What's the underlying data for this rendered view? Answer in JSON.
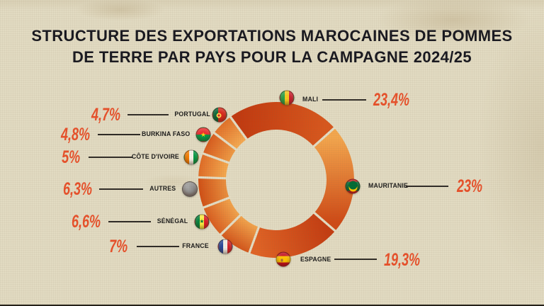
{
  "title": {
    "line1": "STRUCTURE DES EXPORTATIONS MAROCAINES DE POMMES",
    "line2": "DE TERRE PAR PAYS POUR LA CAMPAGNE 2024/25"
  },
  "chart_data": {
    "type": "pie",
    "variant": "donut",
    "title": "Structure des exportations marocaines de pommes de terre par pays pour la campagne 2024/25",
    "unit": "%",
    "start_angle_deg": -36,
    "clockwise": true,
    "categories": [
      "Mali",
      "Mauritanie",
      "Espagne",
      "France",
      "Sénégal",
      "Autres",
      "Côte d'Ivoire",
      "Burkina Faso",
      "Portugal"
    ],
    "values": [
      23.4,
      23,
      19.3,
      7,
      6.6,
      6.3,
      5,
      4.8,
      4.7
    ],
    "segments": [
      {
        "label": "MALI",
        "value": 23.4,
        "pct_label": "23,4%",
        "icon": "mali-flag-icon",
        "gradient": {
          "from": "#c23a10",
          "to": "#d8571d",
          "dir": "arc"
        }
      },
      {
        "label": "MAURITANIE",
        "value": 23,
        "pct_label": "23%",
        "icon": "mauritania-flag-icon",
        "gradient": {
          "from": "#f4a74e",
          "to": "#cf4a16",
          "dir": "arc"
        }
      },
      {
        "label": "ESPAGNE",
        "value": 19.3,
        "pct_label": "19,3%",
        "icon": "spain-flag-icon",
        "gradient": {
          "from": "#c43d12",
          "to": "#e06325",
          "dir": "arc"
        }
      },
      {
        "label": "FRANCE",
        "value": 7,
        "pct_label": "7%",
        "icon": "france-flag-icon",
        "gradient": {
          "from": "#f2a34c",
          "to": "#d3541a",
          "dir": "radial"
        }
      },
      {
        "label": "SÉNÉGAL",
        "value": 6.6,
        "pct_label": "6,6%",
        "icon": "senegal-flag-icon",
        "gradient": {
          "from": "#f2a34c",
          "to": "#d95d1f",
          "dir": "radial"
        }
      },
      {
        "label": "AUTRES",
        "value": 6.3,
        "pct_label": "6,3%",
        "icon": "others-icon",
        "gradient": {
          "from": "#ea8f3e",
          "to": "#d04f15",
          "dir": "radial"
        }
      },
      {
        "label": "CÔTE D'IVOIRE",
        "value": 5,
        "pct_label": "5%",
        "icon": "ivory-coast-flag-icon",
        "gradient": {
          "from": "#f5a94f",
          "to": "#e06c26",
          "dir": "radial"
        }
      },
      {
        "label": "BURKINA FASO",
        "value": 4.8,
        "pct_label": "4,8%",
        "icon": "burkina-faso-flag-icon",
        "gradient": {
          "from": "#ef9a44",
          "to": "#d85c1e",
          "dir": "radial"
        }
      },
      {
        "label": "PORTUGAL",
        "value": 4.7,
        "pct_label": "4,7%",
        "icon": "portugal-flag-icon",
        "gradient": {
          "from": "#f5aa52",
          "to": "#e27129",
          "dir": "radial"
        }
      }
    ]
  },
  "colors": {
    "background": "#e2dbc2",
    "accent_percentage": "#e8502a",
    "title_text": "#17171f",
    "country_label_text": "#1a1a1a",
    "connector_line": "#2e2a26",
    "segment_separator": "#e4ddc4"
  }
}
